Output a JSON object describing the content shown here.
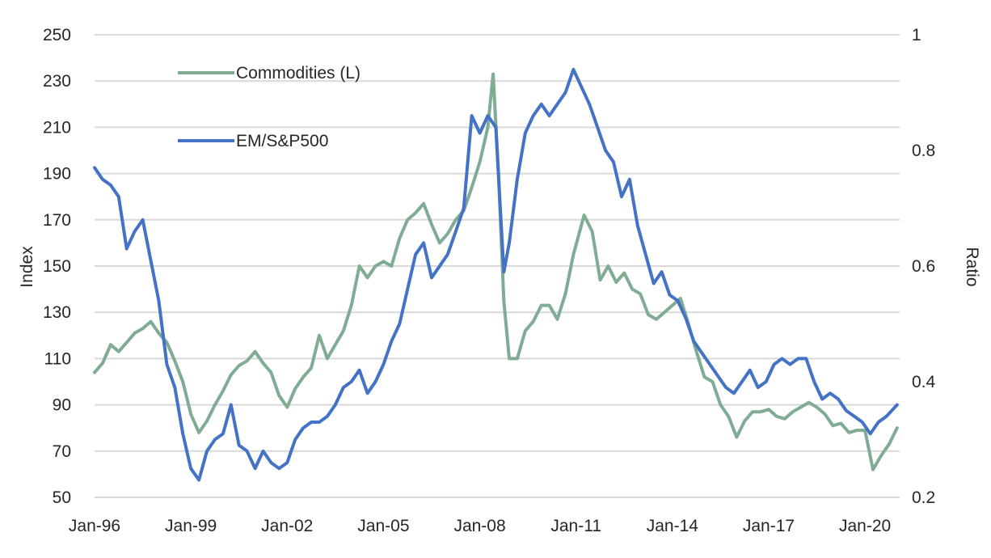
{
  "chart_data": {
    "type": "line",
    "title": "",
    "xlabel": "",
    "ylabel_left": "Index",
    "ylabel_right": "Ratio",
    "ylim_left": [
      50,
      250
    ],
    "ylim_right": [
      0.2,
      1.0
    ],
    "yticks_left": [
      "250",
      "230",
      "210",
      "190",
      "170",
      "150",
      "130",
      "110",
      "90",
      "70",
      "50"
    ],
    "yticks_right": [
      "1",
      "0.8",
      "0.6",
      "0.4",
      "0.2"
    ],
    "xticks": [
      "Jan-96",
      "Jan-99",
      "Jan-02",
      "Jan-05",
      "Jan-08",
      "Jan-11",
      "Jan-14",
      "Jan-17",
      "Jan-20"
    ],
    "grid": true,
    "legend_position": "top-left",
    "series": [
      {
        "name": "Commodities (L)",
        "axis": "left",
        "color": "#7fac92",
        "points": [
          [
            "1996-01",
            104
          ],
          [
            "1996-04",
            108
          ],
          [
            "1996-07",
            116
          ],
          [
            "1996-10",
            113
          ],
          [
            "1997-01",
            117
          ],
          [
            "1997-04",
            121
          ],
          [
            "1997-07",
            123
          ],
          [
            "1997-10",
            126
          ],
          [
            "1998-01",
            121
          ],
          [
            "1998-04",
            117
          ],
          [
            "1998-07",
            109
          ],
          [
            "1998-10",
            100
          ],
          [
            "1999-01",
            86
          ],
          [
            "1999-04",
            78
          ],
          [
            "1999-07",
            83
          ],
          [
            "1999-10",
            90
          ],
          [
            "2000-01",
            96
          ],
          [
            "2000-04",
            103
          ],
          [
            "2000-07",
            107
          ],
          [
            "2000-10",
            109
          ],
          [
            "2001-01",
            113
          ],
          [
            "2001-04",
            108
          ],
          [
            "2001-07",
            104
          ],
          [
            "2001-10",
            94
          ],
          [
            "2002-01",
            89
          ],
          [
            "2002-04",
            97
          ],
          [
            "2002-07",
            102
          ],
          [
            "2002-10",
            106
          ],
          [
            "2003-01",
            120
          ],
          [
            "2003-04",
            110
          ],
          [
            "2003-07",
            116
          ],
          [
            "2003-10",
            122
          ],
          [
            "2004-01",
            133
          ],
          [
            "2004-04",
            150
          ],
          [
            "2004-07",
            145
          ],
          [
            "2004-10",
            150
          ],
          [
            "2005-01",
            152
          ],
          [
            "2005-04",
            150
          ],
          [
            "2005-07",
            162
          ],
          [
            "2005-10",
            170
          ],
          [
            "2006-01",
            173
          ],
          [
            "2006-04",
            177
          ],
          [
            "2006-07",
            168
          ],
          [
            "2006-10",
            160
          ],
          [
            "2007-01",
            164
          ],
          [
            "2007-04",
            170
          ],
          [
            "2007-07",
            174
          ],
          [
            "2007-10",
            184
          ],
          [
            "2008-01",
            195
          ],
          [
            "2008-04",
            210
          ],
          [
            "2008-06",
            233
          ],
          [
            "2008-08",
            190
          ],
          [
            "2008-10",
            135
          ],
          [
            "2008-12",
            110
          ],
          [
            "2009-03",
            110
          ],
          [
            "2009-06",
            122
          ],
          [
            "2009-09",
            126
          ],
          [
            "2009-12",
            133
          ],
          [
            "2010-03",
            133
          ],
          [
            "2010-06",
            127
          ],
          [
            "2010-09",
            138
          ],
          [
            "2010-12",
            155
          ],
          [
            "2011-04",
            172
          ],
          [
            "2011-07",
            165
          ],
          [
            "2011-10",
            144
          ],
          [
            "2012-01",
            150
          ],
          [
            "2012-04",
            143
          ],
          [
            "2012-07",
            147
          ],
          [
            "2012-10",
            140
          ],
          [
            "2013-01",
            138
          ],
          [
            "2013-04",
            129
          ],
          [
            "2013-07",
            127
          ],
          [
            "2013-10",
            130
          ],
          [
            "2014-01",
            133
          ],
          [
            "2014-04",
            136
          ],
          [
            "2014-07",
            125
          ],
          [
            "2014-10",
            113
          ],
          [
            "2015-01",
            102
          ],
          [
            "2015-04",
            100
          ],
          [
            "2015-07",
            90
          ],
          [
            "2015-10",
            85
          ],
          [
            "2016-01",
            76
          ],
          [
            "2016-04",
            83
          ],
          [
            "2016-07",
            87
          ],
          [
            "2016-10",
            87
          ],
          [
            "2017-01",
            88
          ],
          [
            "2017-04",
            85
          ],
          [
            "2017-07",
            84
          ],
          [
            "2017-10",
            87
          ],
          [
            "2018-01",
            89
          ],
          [
            "2018-04",
            91
          ],
          [
            "2018-07",
            89
          ],
          [
            "2018-10",
            86
          ],
          [
            "2019-01",
            81
          ],
          [
            "2019-04",
            82
          ],
          [
            "2019-07",
            78
          ],
          [
            "2019-10",
            79
          ],
          [
            "2020-01",
            79
          ],
          [
            "2020-04",
            62
          ],
          [
            "2020-07",
            68
          ],
          [
            "2020-10",
            73
          ],
          [
            "2021-01",
            80
          ]
        ]
      },
      {
        "name": "EM/S&P500",
        "axis": "right",
        "color": "#4472c4",
        "points": [
          [
            "1996-01",
            0.77
          ],
          [
            "1996-04",
            0.75
          ],
          [
            "1996-07",
            0.74
          ],
          [
            "1996-10",
            0.72
          ],
          [
            "1997-01",
            0.63
          ],
          [
            "1997-04",
            0.66
          ],
          [
            "1997-07",
            0.68
          ],
          [
            "1997-10",
            0.61
          ],
          [
            "1998-01",
            0.54
          ],
          [
            "1998-04",
            0.43
          ],
          [
            "1998-07",
            0.39
          ],
          [
            "1998-10",
            0.31
          ],
          [
            "1999-01",
            0.25
          ],
          [
            "1999-04",
            0.23
          ],
          [
            "1999-07",
            0.28
          ],
          [
            "1999-10",
            0.3
          ],
          [
            "2000-01",
            0.31
          ],
          [
            "2000-04",
            0.36
          ],
          [
            "2000-07",
            0.29
          ],
          [
            "2000-10",
            0.28
          ],
          [
            "2001-01",
            0.25
          ],
          [
            "2001-04",
            0.28
          ],
          [
            "2001-07",
            0.26
          ],
          [
            "2001-10",
            0.25
          ],
          [
            "2002-01",
            0.26
          ],
          [
            "2002-04",
            0.3
          ],
          [
            "2002-07",
            0.32
          ],
          [
            "2002-10",
            0.33
          ],
          [
            "2003-01",
            0.33
          ],
          [
            "2003-04",
            0.34
          ],
          [
            "2003-07",
            0.36
          ],
          [
            "2003-10",
            0.39
          ],
          [
            "2004-01",
            0.4
          ],
          [
            "2004-04",
            0.42
          ],
          [
            "2004-07",
            0.38
          ],
          [
            "2004-10",
            0.4
          ],
          [
            "2005-01",
            0.43
          ],
          [
            "2005-04",
            0.47
          ],
          [
            "2005-07",
            0.5
          ],
          [
            "2005-10",
            0.56
          ],
          [
            "2006-01",
            0.62
          ],
          [
            "2006-04",
            0.64
          ],
          [
            "2006-07",
            0.58
          ],
          [
            "2006-10",
            0.6
          ],
          [
            "2007-01",
            0.62
          ],
          [
            "2007-04",
            0.66
          ],
          [
            "2007-07",
            0.7
          ],
          [
            "2007-10",
            0.86
          ],
          [
            "2008-01",
            0.83
          ],
          [
            "2008-04",
            0.86
          ],
          [
            "2008-07",
            0.84
          ],
          [
            "2008-10",
            0.59
          ],
          [
            "2008-12",
            0.64
          ],
          [
            "2009-03",
            0.75
          ],
          [
            "2009-06",
            0.83
          ],
          [
            "2009-09",
            0.86
          ],
          [
            "2009-12",
            0.88
          ],
          [
            "2010-03",
            0.86
          ],
          [
            "2010-06",
            0.88
          ],
          [
            "2010-09",
            0.9
          ],
          [
            "2010-12",
            0.94
          ],
          [
            "2011-03",
            0.91
          ],
          [
            "2011-06",
            0.88
          ],
          [
            "2011-09",
            0.84
          ],
          [
            "2011-12",
            0.8
          ],
          [
            "2012-03",
            0.78
          ],
          [
            "2012-06",
            0.72
          ],
          [
            "2012-09",
            0.75
          ],
          [
            "2012-12",
            0.67
          ],
          [
            "2013-03",
            0.62
          ],
          [
            "2013-06",
            0.57
          ],
          [
            "2013-09",
            0.59
          ],
          [
            "2013-12",
            0.55
          ],
          [
            "2014-03",
            0.54
          ],
          [
            "2014-06",
            0.51
          ],
          [
            "2014-09",
            0.47
          ],
          [
            "2014-12",
            0.45
          ],
          [
            "2015-03",
            0.43
          ],
          [
            "2015-06",
            0.41
          ],
          [
            "2015-09",
            0.39
          ],
          [
            "2015-12",
            0.38
          ],
          [
            "2016-03",
            0.4
          ],
          [
            "2016-06",
            0.42
          ],
          [
            "2016-09",
            0.39
          ],
          [
            "2016-12",
            0.4
          ],
          [
            "2017-03",
            0.43
          ],
          [
            "2017-06",
            0.44
          ],
          [
            "2017-09",
            0.43
          ],
          [
            "2017-12",
            0.44
          ],
          [
            "2018-03",
            0.44
          ],
          [
            "2018-06",
            0.4
          ],
          [
            "2018-09",
            0.37
          ],
          [
            "2018-12",
            0.38
          ],
          [
            "2019-03",
            0.37
          ],
          [
            "2019-06",
            0.35
          ],
          [
            "2019-09",
            0.34
          ],
          [
            "2019-12",
            0.33
          ],
          [
            "2020-03",
            0.31
          ],
          [
            "2020-06",
            0.33
          ],
          [
            "2020-09",
            0.34
          ],
          [
            "2021-01",
            0.36
          ]
        ]
      }
    ]
  }
}
